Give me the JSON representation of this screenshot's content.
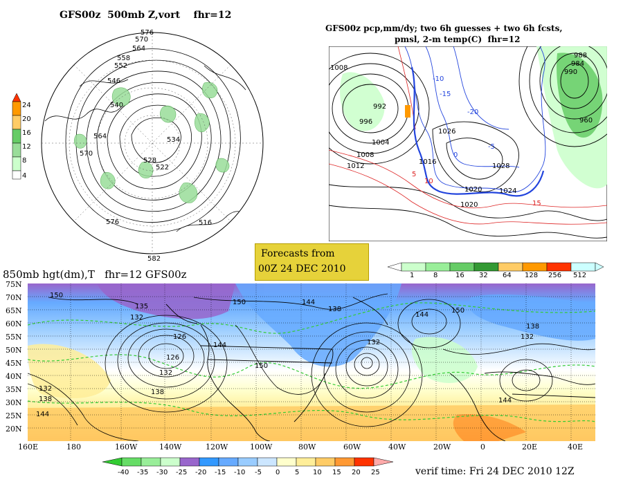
{
  "panels": {
    "top_left": {
      "title": "GFS00z  500mb Z,vort    fhr=12",
      "contour_labels": [
        "576",
        "570",
        "564",
        "558",
        "552",
        "546",
        "540",
        "534",
        "528",
        "522",
        "516",
        "564",
        "570",
        "576",
        "582"
      ],
      "legend_ticks": [
        "24",
        "20",
        "16",
        "12",
        "8",
        "4"
      ],
      "legend_colors": [
        "#ff3300",
        "#ff9900",
        "#ffcc66",
        "#66cc66",
        "#99dd99",
        "#ccffcc"
      ]
    },
    "top_right": {
      "title_line1": "GFS00z pcp,mm/dy; two 6h guesses + two 6h fcsts,",
      "title_line2": "pmsl, 2-m temp(C)  fhr=12",
      "pressure_labels": [
        "988",
        "984",
        "1008",
        "992",
        "996",
        "1004",
        "1012",
        "1008",
        "1016",
        "1026",
        "1020",
        "1024",
        "1028",
        "1020",
        "960",
        "990"
      ],
      "temp_labels": [
        "-10",
        "-20",
        "-15",
        "5",
        "10",
        "15",
        "-5",
        "0"
      ],
      "legend_ticks": [
        "1",
        "8",
        "16",
        "32",
        "64",
        "128",
        "256",
        "512"
      ],
      "legend_colors": [
        "#ffffff",
        "#ccffcc",
        "#66cc66",
        "#339933",
        "#ffcc66",
        "#ff9900",
        "#ff3300",
        "#ccffff"
      ]
    },
    "forecast_box": {
      "line1": "Forecasts from",
      "line2": "00Z 24 DEC 2010"
    },
    "bottom": {
      "title": "850mb hgt(dm),T   fhr=12 GFS00z",
      "lat_labels": [
        "75N",
        "70N",
        "65N",
        "60N",
        "55N",
        "50N",
        "45N",
        "40N",
        "35N",
        "30N",
        "25N",
        "20N"
      ],
      "lon_labels": [
        "160E",
        "180",
        "160W",
        "140W",
        "120W",
        "100W",
        "80W",
        "60W",
        "40W",
        "20W",
        "0",
        "20E",
        "40E"
      ],
      "height_labels": [
        "150",
        "135",
        "132",
        "144",
        "138",
        "132",
        "126",
        "144",
        "138",
        "150",
        "144",
        "150",
        "132",
        "138",
        "132",
        "126",
        "144",
        "150",
        "132",
        "138",
        "144"
      ],
      "legend_ticks": [
        "-40",
        "-35",
        "-30",
        "-25",
        "-20",
        "-15",
        "-10",
        "-5",
        "0",
        "5",
        "10",
        "15",
        "20",
        "25"
      ],
      "legend_colors": [
        "#33cc33",
        "#66dd66",
        "#99ee99",
        "#ccffcc",
        "#9966cc",
        "#3399ff",
        "#66aaff",
        "#99ccff",
        "#cce6ff",
        "#ffffcc",
        "#ffee99",
        "#ffcc66",
        "#ff9933",
        "#ff3300",
        "#ffaaaa"
      ],
      "verif_time": "verif time: Fri 24 DEC 2010 12Z"
    }
  }
}
